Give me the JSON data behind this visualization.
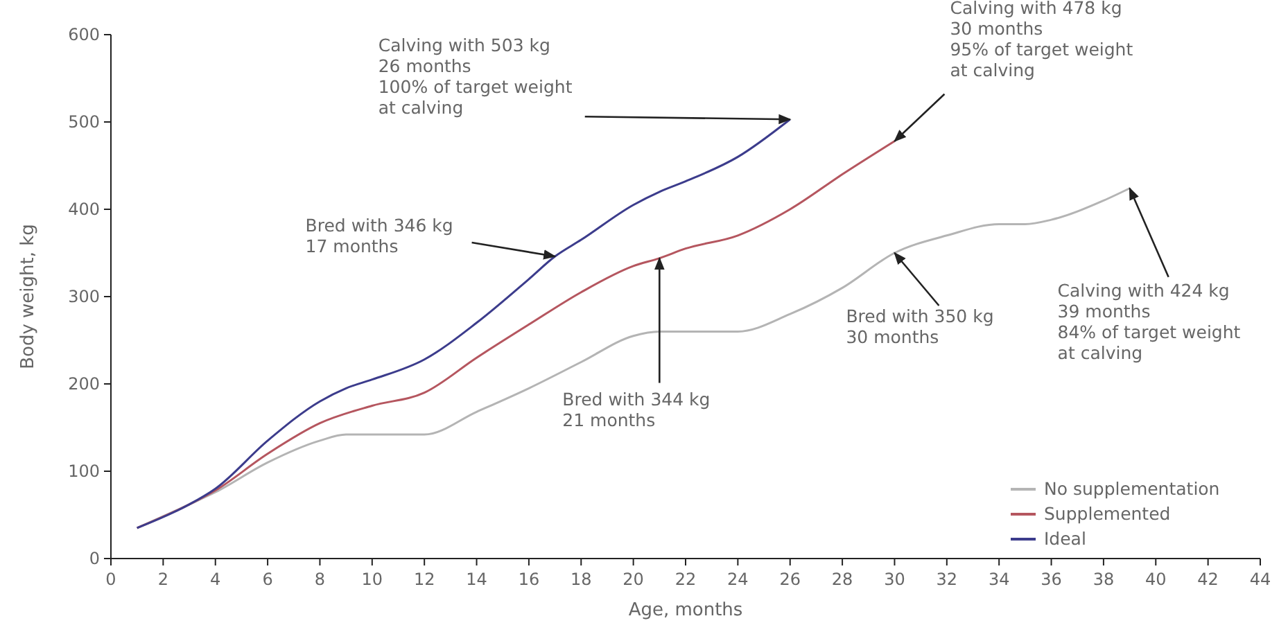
{
  "chart_data": {
    "type": "line",
    "xlabel": "Age, months",
    "ylabel": "Body weight, kg",
    "xlim": [
      0,
      44
    ],
    "ylim": [
      0,
      600
    ],
    "xticks": [
      0,
      2,
      4,
      6,
      8,
      10,
      12,
      14,
      16,
      18,
      20,
      22,
      24,
      26,
      28,
      30,
      32,
      34,
      36,
      38,
      40,
      42,
      44
    ],
    "yticks": [
      0,
      100,
      200,
      300,
      400,
      500,
      600
    ],
    "grid": false,
    "legend": "bottom right",
    "marker": "none",
    "line_style": "solid",
    "series": [
      {
        "name": "No supplementation",
        "color": "#b4b4b4",
        "x": [
          1,
          3,
          4,
          6,
          8,
          9,
          12,
          14,
          16,
          18,
          20,
          21,
          24,
          26,
          28,
          30,
          32,
          34,
          35,
          36,
          38,
          39
        ],
        "values": [
          35,
          62,
          76,
          110,
          135,
          142,
          142,
          168,
          195,
          225,
          255,
          260,
          260,
          280,
          310,
          350,
          370,
          383,
          383,
          388,
          410,
          424
        ]
      },
      {
        "name": "Supplemented",
        "color": "#b5565f",
        "x": [
          1,
          3,
          4,
          6,
          8,
          10,
          12,
          14,
          16,
          18,
          20,
          21,
          22,
          24,
          26,
          28,
          30
        ],
        "values": [
          35,
          62,
          78,
          120,
          155,
          175,
          190,
          230,
          268,
          305,
          335,
          344,
          355,
          370,
          400,
          440,
          478
        ]
      },
      {
        "name": "Ideal",
        "color": "#3c3c8c",
        "x": [
          1,
          3,
          4,
          6,
          8,
          9,
          10,
          12,
          14,
          16,
          17,
          18,
          20,
          21,
          22,
          24,
          26
        ],
        "values": [
          35,
          62,
          80,
          135,
          180,
          195,
          205,
          228,
          270,
          320,
          346,
          365,
          405,
          420,
          432,
          460,
          503
        ]
      }
    ],
    "annotations": [
      {
        "text": "Calving with 503 kg\n26 months\n100% of target weight\nat calving",
        "x": 26,
        "y": 503
      },
      {
        "text": "Bred with 346 kg\n17 months",
        "x": 17,
        "y": 346
      },
      {
        "text": "Calving with 478 kg\n30 months\n95% of target weight\nat calving",
        "x": 30,
        "y": 478
      },
      {
        "text": "Bred with 344 kg\n21 months",
        "x": 21,
        "y": 344
      },
      {
        "text": "Bred with 350 kg\n30 months",
        "x": 30,
        "y": 350
      },
      {
        "text": "Calving with 424 kg\n39 months\n84% of target weight\nat calving",
        "x": 39,
        "y": 424
      }
    ]
  }
}
